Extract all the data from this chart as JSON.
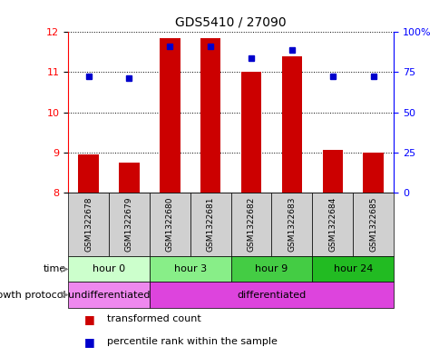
{
  "title": "GDS5410 / 27090",
  "samples": [
    "GSM1322678",
    "GSM1322679",
    "GSM1322680",
    "GSM1322681",
    "GSM1322682",
    "GSM1322683",
    "GSM1322684",
    "GSM1322685"
  ],
  "bar_values": [
    8.95,
    8.75,
    11.85,
    11.85,
    11.0,
    11.4,
    9.05,
    9.0
  ],
  "bar_base": 8.0,
  "scatter_values": [
    10.9,
    10.85,
    11.65,
    11.65,
    11.35,
    11.55,
    10.9,
    10.9
  ],
  "ylim_left": [
    8,
    12
  ],
  "ylim_right": [
    0,
    100
  ],
  "yticks_left": [
    8,
    9,
    10,
    11,
    12
  ],
  "yticks_right": [
    0,
    25,
    50,
    75,
    100
  ],
  "ytick_labels_right": [
    "0",
    "25",
    "50",
    "75",
    "100%"
  ],
  "bar_color": "#cc0000",
  "scatter_color": "#0000cc",
  "time_groups": [
    {
      "label": "hour 0",
      "start": 0,
      "end": 2,
      "color": "#ccffcc"
    },
    {
      "label": "hour 3",
      "start": 2,
      "end": 4,
      "color": "#88ee88"
    },
    {
      "label": "hour 9",
      "start": 4,
      "end": 6,
      "color": "#44cc44"
    },
    {
      "label": "hour 24",
      "start": 6,
      "end": 8,
      "color": "#22bb22"
    }
  ],
  "growth_groups": [
    {
      "label": "undifferentiated",
      "start": 0,
      "end": 2,
      "color": "#ee88ee"
    },
    {
      "label": "differentiated",
      "start": 2,
      "end": 8,
      "color": "#dd44dd"
    }
  ],
  "legend_bar_label": "transformed count",
  "legend_scatter_label": "percentile rank within the sample",
  "time_label": "time",
  "growth_label": "growth protocol",
  "fig_bg": "#ffffff"
}
